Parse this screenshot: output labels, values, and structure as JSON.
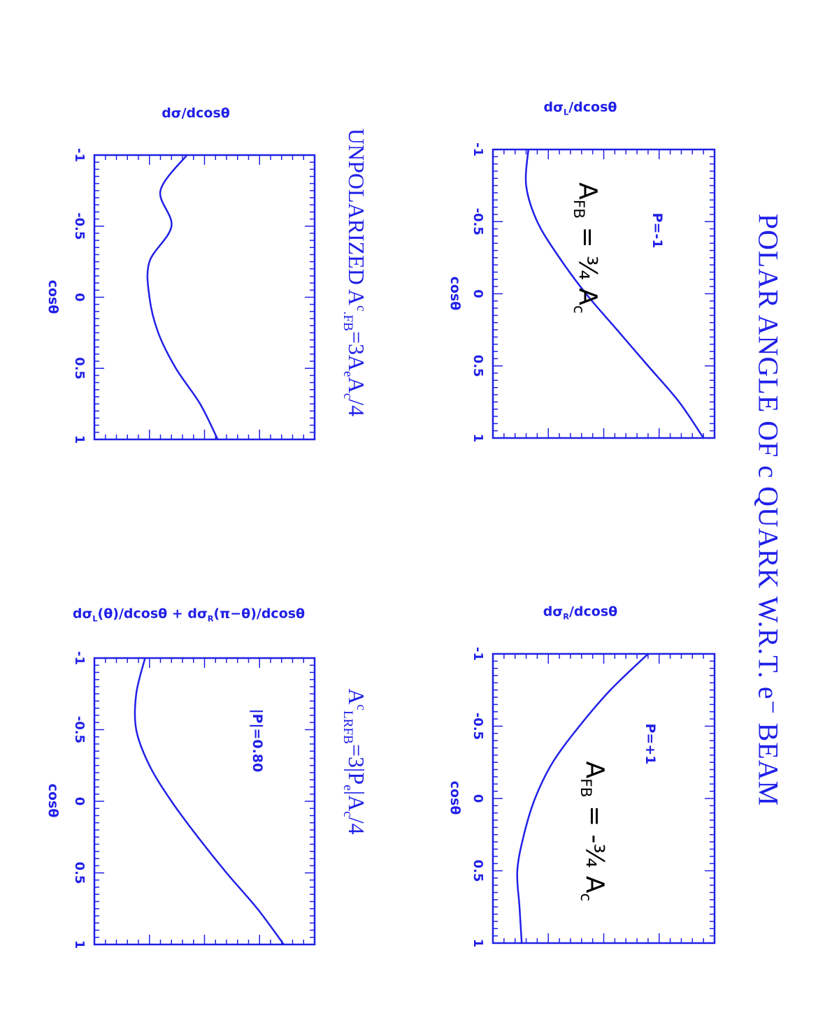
{
  "title": "POLAR ANGLE OF c QUARK W.R.T. e⁻ BEAM",
  "colors": {
    "ink": "#2020e8",
    "hand": "#000000"
  },
  "chart_data": [
    {
      "type": "line",
      "ylabel": "dσL/dcosθ",
      "xlabel": "cosθ",
      "xlim": [
        -1,
        1
      ],
      "xticks": [
        "-1",
        "-0.5",
        "0",
        "0.5",
        "1"
      ],
      "annotations": [
        "P=-1",
        "A_FB = 3/4 A_c"
      ],
      "x": [
        -1,
        -0.75,
        -0.5,
        -0.25,
        0,
        0.25,
        0.5,
        0.75,
        1
      ],
      "y": [
        0.16,
        0.15,
        0.2,
        0.3,
        0.42,
        0.56,
        0.7,
        0.84,
        0.95
      ]
    },
    {
      "type": "line",
      "ylabel": "dσR/dcosθ",
      "xlabel": "cosθ",
      "xlim": [
        -1,
        1
      ],
      "xticks": [
        "-1",
        "-0.5",
        "0",
        "0.5",
        "1"
      ],
      "annotations": [
        "P=+1",
        "A_FB = -3/4 A_c"
      ],
      "x": [
        -1,
        -0.75,
        -0.5,
        -0.25,
        0,
        0.25,
        0.5,
        0.75,
        1
      ],
      "y": [
        0.7,
        0.53,
        0.39,
        0.27,
        0.19,
        0.14,
        0.11,
        0.12,
        0.13
      ]
    },
    {
      "type": "line",
      "ylabel": "dσ/dcosθ",
      "xlabel": "cosθ",
      "xlim": [
        -1,
        1
      ],
      "xticks": [
        "-1",
        "-0.5",
        "0",
        "0.5",
        "1"
      ],
      "caption": "UNPOLARIZED Aᶜ.FB=3AeAc/4",
      "x": [
        -1,
        -0.75,
        -0.5,
        -0.25,
        0,
        0.25,
        0.5,
        0.75,
        1
      ],
      "y": [
        0.42,
        0.3,
        0.35,
        0.25,
        0.25,
        0.29,
        0.37,
        0.48,
        0.56
      ]
    },
    {
      "type": "line",
      "ylabel": "dσL(θ)/dcosθ + dσR(π-θ)/dcosθ",
      "xlabel": "cosθ",
      "xlim": [
        -1,
        1
      ],
      "xticks": [
        "-1",
        "-0.5",
        "0",
        "0.5",
        "1"
      ],
      "caption": "AᶜLRFB=3|Pe|Ac/4",
      "annotations": [
        "|P|=0.80"
      ],
      "x": [
        -1,
        -0.75,
        -0.5,
        -0.25,
        0,
        0.25,
        0.5,
        0.75,
        1
      ],
      "y": [
        0.23,
        0.19,
        0.19,
        0.25,
        0.35,
        0.47,
        0.6,
        0.74,
        0.86
      ]
    }
  ]
}
